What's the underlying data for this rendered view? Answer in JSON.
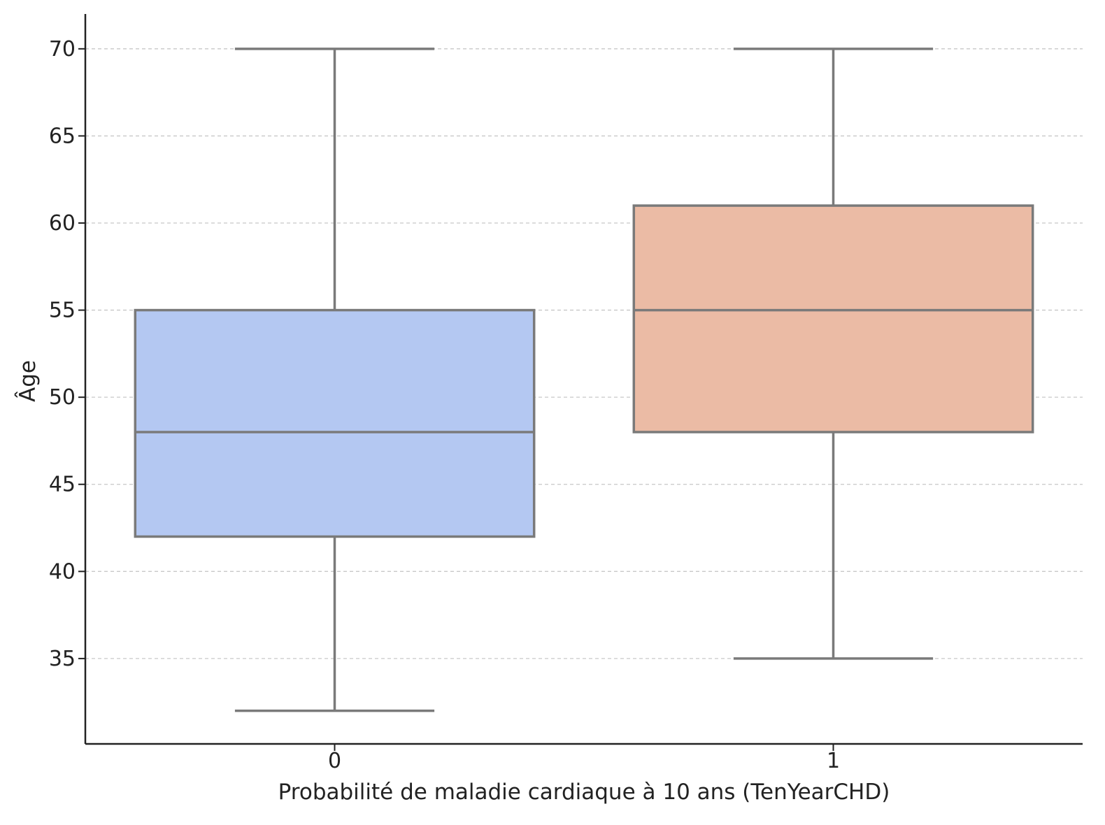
{
  "chart_data": {
    "type": "box",
    "title": "",
    "xlabel": "Probabilité de maladie cardiaque à 10 ans (TenYearCHD)",
    "ylabel": "Âge",
    "categories": [
      "0",
      "1"
    ],
    "boxes": [
      {
        "category": "0",
        "whisker_low": 32,
        "q1": 42,
        "median": 48,
        "q3": 55,
        "whisker_high": 70,
        "color": "#b4c8f2"
      },
      {
        "category": "1",
        "whisker_low": 35,
        "q1": 48,
        "median": 55,
        "q3": 61,
        "whisker_high": 70,
        "color": "#ebbba5"
      }
    ],
    "ylim": [
      30.1,
      72
    ],
    "yticks": [
      35,
      40,
      45,
      50,
      55,
      60,
      65,
      70
    ],
    "ytick_labels": [
      "35",
      "40",
      "45",
      "50",
      "55",
      "60",
      "65",
      "70"
    ],
    "grid": "horizontal-dashed",
    "line_color": "#7a7a7a",
    "grid_color": "#c8c8c8",
    "axis_color": "#222222"
  }
}
